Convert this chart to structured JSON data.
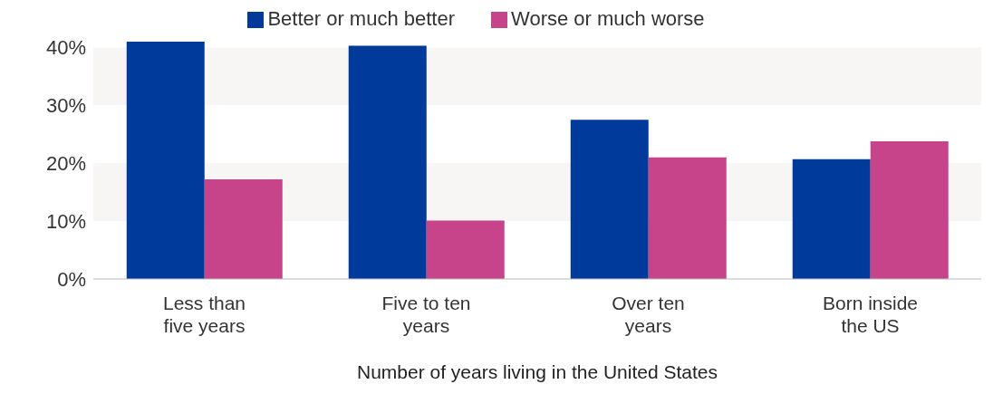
{
  "chart_data": {
    "type": "bar",
    "xlabel": "Number of years living in the United States",
    "categories": [
      "Less than five years",
      "Five to ten years",
      "Over ten years",
      "Born inside the US"
    ],
    "series": [
      {
        "name": "Better or much better",
        "color": "#003a9b",
        "values": [
          41.0,
          40.3,
          27.5,
          20.7
        ]
      },
      {
        "name": "Worse or much worse",
        "color": "#c8448a",
        "values": [
          17.2,
          10.1,
          21.0,
          23.8
        ]
      }
    ],
    "ylim": [
      0,
      41
    ],
    "yticks": [
      {
        "value": 0,
        "label": "0%"
      },
      {
        "value": 10,
        "label": "10%"
      },
      {
        "value": 20,
        "label": "20%"
      },
      {
        "value": 30,
        "label": "30%"
      },
      {
        "value": 40,
        "label": "40%"
      }
    ],
    "bands": [
      {
        "axis": "y",
        "from": 10,
        "to": 20,
        "color": "#f7f6f5"
      },
      {
        "axis": "y",
        "from": 30,
        "to": 40,
        "color": "#f7f6f5"
      }
    ],
    "legend": "top"
  }
}
